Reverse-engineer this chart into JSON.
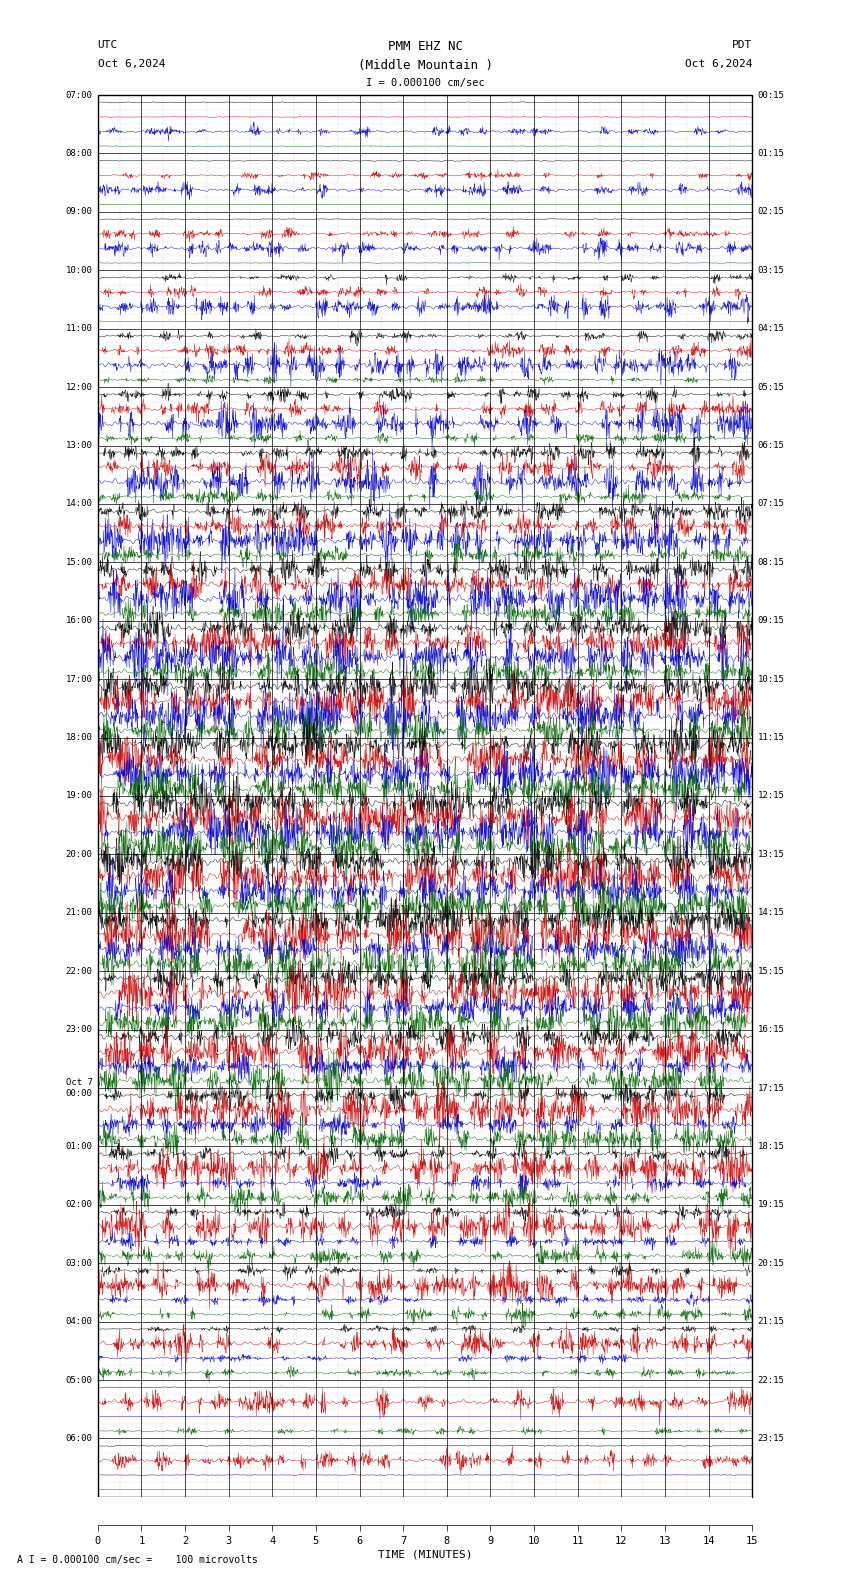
{
  "title_line1": "PMM EHZ NC",
  "title_line2": "(Middle Mountain )",
  "scale_label": "I = 0.000100 cm/sec",
  "utc_label": "UTC",
  "pdt_label": "PDT",
  "date_left": "Oct 6,2024",
  "date_right": "Oct 6,2024",
  "bottom_label": "A I = 0.000100 cm/sec =    100 microvolts",
  "xlabel": "TIME (MINUTES)",
  "left_times": [
    "07:00",
    "08:00",
    "09:00",
    "10:00",
    "11:00",
    "12:00",
    "13:00",
    "14:00",
    "15:00",
    "16:00",
    "17:00",
    "18:00",
    "19:00",
    "20:00",
    "21:00",
    "22:00",
    "23:00",
    "Oct 7\n00:00",
    "01:00",
    "02:00",
    "03:00",
    "04:00",
    "05:00",
    "06:00"
  ],
  "right_times": [
    "00:15",
    "01:15",
    "02:15",
    "03:15",
    "04:15",
    "05:15",
    "06:15",
    "07:15",
    "08:15",
    "09:15",
    "10:15",
    "11:15",
    "12:15",
    "13:15",
    "14:15",
    "15:15",
    "16:15",
    "17:15",
    "18:15",
    "19:15",
    "20:15",
    "21:15",
    "22:15",
    "23:15"
  ],
  "num_hour_rows": 24,
  "channels_per_row": 4,
  "trace_duration_minutes": 15,
  "bg_color": "#ffffff",
  "grid_color": "#999999",
  "colors": [
    "#000000",
    "#cc0000",
    "#0000cc",
    "#006600"
  ],
  "figwidth": 8.5,
  "figheight": 15.84,
  "dpi": 100
}
